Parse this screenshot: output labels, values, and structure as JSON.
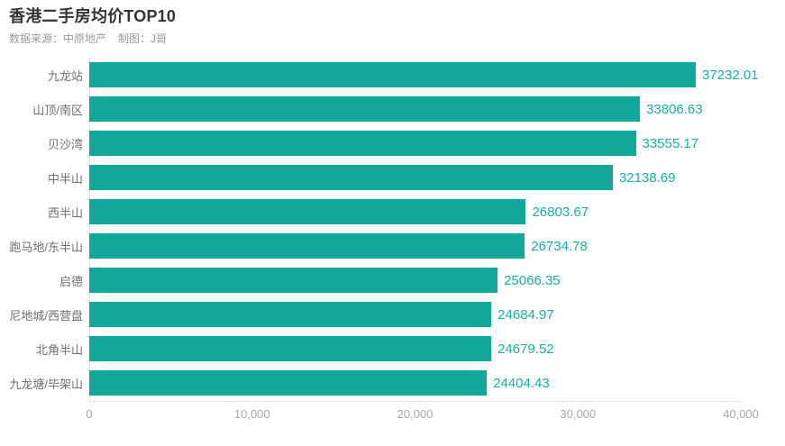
{
  "header": {
    "title": "香港二手房均价TOP10",
    "source_label": "数据来源：中原地产",
    "credit_label": "制图：J哥"
  },
  "colors": {
    "bar": "#11a79a",
    "value_label": "#15b0a2",
    "axis_line": "#e2e2e2",
    "tick_label": "#a8a8a8",
    "category_label": "#6e6e6e",
    "title": "#333333",
    "subtitle": "#999999",
    "background": "#ffffff"
  },
  "chart_data": {
    "type": "bar",
    "orientation": "horizontal",
    "title": "香港二手房均价TOP10",
    "subtitle": "数据来源：中原地产 制图：J哥",
    "categories": [
      "九龙站",
      "山顶/南区",
      "贝沙湾",
      "中半山",
      "西半山",
      "跑马地/东半山",
      "启德",
      "尼地城/西营盘",
      "北角半山",
      "九龙塘/毕架山"
    ],
    "values": [
      37232.01,
      33806.63,
      33555.17,
      32138.69,
      26803.67,
      26734.78,
      25066.35,
      24684.97,
      24679.52,
      24404.43
    ],
    "value_labels": [
      "37232.01",
      "33806.63",
      "33555.17",
      "32138.69",
      "26803.67",
      "26734.78",
      "25066.35",
      "24684.97",
      "24679.52",
      "24404.43"
    ],
    "xlabel": "",
    "ylabel": "",
    "xlim": [
      0,
      40000
    ],
    "x_ticks": [
      0,
      10000,
      20000,
      30000,
      40000
    ],
    "x_tick_labels": [
      "0",
      "10,000",
      "20,000",
      "30,000",
      "40,000"
    ],
    "grid": false,
    "legend": false,
    "bar_sorted_descending": true
  }
}
